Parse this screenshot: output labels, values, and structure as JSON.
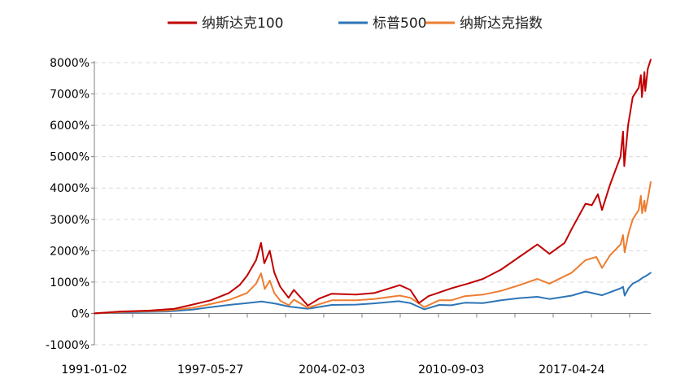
{
  "chart_data": {
    "type": "line",
    "title": "",
    "xlabel": "",
    "ylabel": "",
    "ylim": [
      -1000,
      8000
    ],
    "y_ticks": [
      -1000,
      0,
      1000,
      2000,
      3000,
      4000,
      5000,
      6000,
      7000,
      8000
    ],
    "y_tick_labels": [
      "-1000%",
      "0%",
      "1000%",
      "2000%",
      "3000%",
      "4000%",
      "5000%",
      "6000%",
      "7000%",
      "8000%"
    ],
    "x_range": [
      "1991-01-02",
      "2021-08-31"
    ],
    "x_tick_labels": [
      "1991-01-02",
      "1997-05-27",
      "2004-02-03",
      "2010-09-03",
      "2017-04-24"
    ],
    "grid": "horizontal dashed",
    "legend_position": "top",
    "series": [
      {
        "name": "纳斯达克100",
        "color": "#C00000",
        "points": [
          [
            "1991-01-02",
            0
          ],
          [
            "1992-06-01",
            60
          ],
          [
            "1994-01-01",
            90
          ],
          [
            "1995-06-01",
            150
          ],
          [
            "1996-06-01",
            280
          ],
          [
            "1997-06-01",
            420
          ],
          [
            "1998-06-01",
            650
          ],
          [
            "1999-01-01",
            900
          ],
          [
            "1999-06-01",
            1200
          ],
          [
            "1999-12-01",
            1700
          ],
          [
            "2000-03-10",
            2250
          ],
          [
            "2000-05-15",
            1600
          ],
          [
            "2000-09-01",
            2000
          ],
          [
            "2000-12-01",
            1300
          ],
          [
            "2001-04-01",
            850
          ],
          [
            "2001-09-15",
            500
          ],
          [
            "2002-01-01",
            750
          ],
          [
            "2002-10-09",
            250
          ],
          [
            "2003-06-01",
            480
          ],
          [
            "2004-02-03",
            630
          ],
          [
            "2005-06-01",
            600
          ],
          [
            "2006-06-01",
            650
          ],
          [
            "2007-10-31",
            900
          ],
          [
            "2008-06-01",
            750
          ],
          [
            "2008-11-20",
            330
          ],
          [
            "2009-06-01",
            550
          ],
          [
            "2010-09-03",
            800
          ],
          [
            "2011-08-01",
            950
          ],
          [
            "2012-06-01",
            1100
          ],
          [
            "2013-06-01",
            1400
          ],
          [
            "2014-06-01",
            1800
          ],
          [
            "2015-06-01",
            2200
          ],
          [
            "2016-02-01",
            1900
          ],
          [
            "2016-12-01",
            2250
          ],
          [
            "2017-04-24",
            2700
          ],
          [
            "2018-01-26",
            3500
          ],
          [
            "2018-06-01",
            3450
          ],
          [
            "2018-10-01",
            3800
          ],
          [
            "2018-12-24",
            3300
          ],
          [
            "2019-06-01",
            4100
          ],
          [
            "2019-12-31",
            5000
          ],
          [
            "2020-02-19",
            5800
          ],
          [
            "2020-03-16",
            4700
          ],
          [
            "2020-06-01",
            6000
          ],
          [
            "2020-09-02",
            6900
          ],
          [
            "2020-12-31",
            7200
          ],
          [
            "2021-02-12",
            7600
          ],
          [
            "2021-03-05",
            6900
          ],
          [
            "2021-04-26",
            7700
          ],
          [
            "2021-05-12",
            7100
          ],
          [
            "2021-07-01",
            7800
          ],
          [
            "2021-08-31",
            8100
          ]
        ]
      },
      {
        "name": "标普500",
        "color": "#2E75B6",
        "points": [
          [
            "1991-01-02",
            0
          ],
          [
            "1993-01-01",
            40
          ],
          [
            "1995-01-01",
            60
          ],
          [
            "1996-06-01",
            120
          ],
          [
            "1997-06-01",
            200
          ],
          [
            "1998-06-01",
            270
          ],
          [
            "1999-06-01",
            330
          ],
          [
            "2000-03-24",
            380
          ],
          [
            "2001-01-01",
            310
          ],
          [
            "2001-09-21",
            220
          ],
          [
            "2002-10-09",
            150
          ],
          [
            "2004-02-03",
            270
          ],
          [
            "2005-06-01",
            280
          ],
          [
            "2006-06-01",
            320
          ],
          [
            "2007-10-09",
            390
          ],
          [
            "2008-06-01",
            330
          ],
          [
            "2009-03-09",
            130
          ],
          [
            "2010-01-01",
            270
          ],
          [
            "2010-09-03",
            260
          ],
          [
            "2011-06-01",
            340
          ],
          [
            "2012-06-01",
            330
          ],
          [
            "2013-06-01",
            420
          ],
          [
            "2014-06-01",
            490
          ],
          [
            "2015-06-01",
            530
          ],
          [
            "2016-02-01",
            460
          ],
          [
            "2017-04-24",
            570
          ],
          [
            "2018-01-26",
            700
          ],
          [
            "2018-12-24",
            580
          ],
          [
            "2019-12-31",
            800
          ],
          [
            "2020-02-19",
            850
          ],
          [
            "2020-03-23",
            570
          ],
          [
            "2020-06-08",
            800
          ],
          [
            "2020-09-02",
            950
          ],
          [
            "2020-12-31",
            1050
          ],
          [
            "2021-04-01",
            1150
          ],
          [
            "2021-06-01",
            1200
          ],
          [
            "2021-08-31",
            1300
          ]
        ]
      },
      {
        "name": "纳斯达克指数",
        "color": "#ED7D31",
        "points": [
          [
            "1991-01-02",
            0
          ],
          [
            "1993-01-01",
            60
          ],
          [
            "1995-01-01",
            90
          ],
          [
            "1996-06-01",
            180
          ],
          [
            "1997-06-01",
            300
          ],
          [
            "1998-06-01",
            430
          ],
          [
            "1999-06-01",
            650
          ],
          [
            "1999-12-01",
            950
          ],
          [
            "2000-03-10",
            1280
          ],
          [
            "2000-05-24",
            780
          ],
          [
            "2000-09-01",
            1050
          ],
          [
            "2000-12-01",
            650
          ],
          [
            "2001-04-04",
            400
          ],
          [
            "2001-09-21",
            260
          ],
          [
            "2002-01-01",
            440
          ],
          [
            "2002-10-09",
            180
          ],
          [
            "2004-02-03",
            420
          ],
          [
            "2005-06-01",
            420
          ],
          [
            "2006-06-01",
            460
          ],
          [
            "2007-10-31",
            570
          ],
          [
            "2008-06-01",
            500
          ],
          [
            "2009-03-09",
            200
          ],
          [
            "2010-01-01",
            420
          ],
          [
            "2010-09-03",
            420
          ],
          [
            "2011-06-01",
            550
          ],
          [
            "2012-06-01",
            600
          ],
          [
            "2013-06-01",
            720
          ],
          [
            "2014-06-01",
            900
          ],
          [
            "2015-06-01",
            1100
          ],
          [
            "2016-02-01",
            950
          ],
          [
            "2017-04-24",
            1300
          ],
          [
            "2018-01-26",
            1700
          ],
          [
            "2018-08-30",
            1800
          ],
          [
            "2018-12-24",
            1450
          ],
          [
            "2019-06-01",
            1850
          ],
          [
            "2019-12-31",
            2200
          ],
          [
            "2020-02-19",
            2500
          ],
          [
            "2020-03-23",
            1950
          ],
          [
            "2020-06-08",
            2550
          ],
          [
            "2020-09-02",
            3000
          ],
          [
            "2020-12-31",
            3300
          ],
          [
            "2021-02-12",
            3750
          ],
          [
            "2021-03-08",
            3200
          ],
          [
            "2021-04-26",
            3600
          ],
          [
            "2021-05-12",
            3250
          ],
          [
            "2021-07-01",
            3650
          ],
          [
            "2021-08-31",
            4200
          ]
        ]
      }
    ]
  }
}
